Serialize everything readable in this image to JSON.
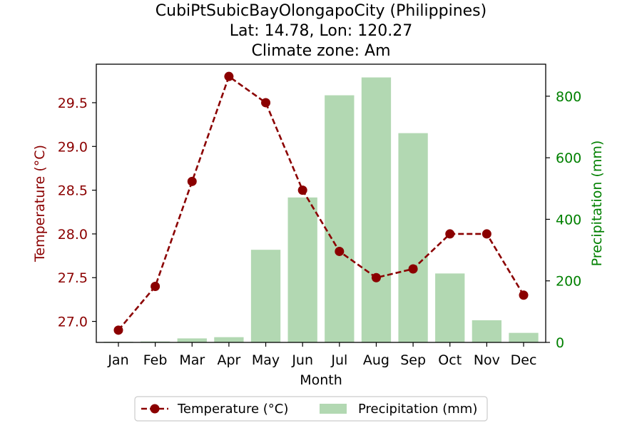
{
  "chart_data": {
    "type": "bar+line",
    "title_lines": [
      "CubiPtSubicBayOlongapoCity (Philippines)",
      "Lat: 14.78, Lon: 120.27",
      "Climate zone: Am"
    ],
    "xlabel": "Month",
    "categories": [
      "Jan",
      "Feb",
      "Mar",
      "Apr",
      "May",
      "Jun",
      "Jul",
      "Aug",
      "Sep",
      "Oct",
      "Nov",
      "Dec"
    ],
    "temperature": {
      "name": "Temperature (°C)",
      "axis_label": "Temperature (°C)",
      "values": [
        26.9,
        27.4,
        28.6,
        29.8,
        29.5,
        28.5,
        27.8,
        27.5,
        27.6,
        28.0,
        28.0,
        27.3
      ],
      "ylim": [
        26.76,
        29.94
      ],
      "ticks": [
        27.0,
        27.5,
        28.0,
        28.5,
        29.0,
        29.5
      ],
      "tick_labels": [
        "27.0",
        "27.5",
        "28.0",
        "28.5",
        "29.0",
        "29.5"
      ],
      "color": "#8b0000"
    },
    "precipitation": {
      "name": "Precipitation (mm)",
      "axis_label": "Precipitation (mm)",
      "values": [
        2,
        3,
        13,
        17,
        301,
        471,
        803,
        861,
        680,
        224,
        72,
        31
      ],
      "ylim": [
        0,
        904
      ],
      "ticks": [
        0,
        200,
        400,
        600,
        800
      ],
      "tick_labels": [
        "0",
        "200",
        "400",
        "600",
        "800"
      ],
      "color": "#b2d8b2",
      "axis_color": "#008000"
    },
    "legend_position": "bottom-center"
  }
}
